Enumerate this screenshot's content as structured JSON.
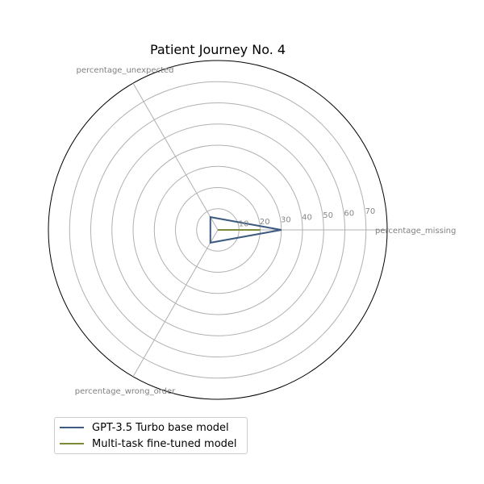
{
  "chart_data": {
    "type": "radar",
    "title": "Patient Journey No. 4",
    "axes": [
      "percentage_missing",
      "percentage_unexpected",
      "percentage_wrong_order"
    ],
    "r_ticks": [
      "10",
      "20",
      "30",
      "40",
      "50",
      "60",
      "70"
    ],
    "r_tick_values": [
      10,
      20,
      30,
      40,
      50,
      60,
      70
    ],
    "rlim": [
      0,
      80
    ],
    "grid": true,
    "legend_position": "lower-left",
    "series": [
      {
        "name": "GPT-3.5 Turbo base model",
        "values": [
          30,
          7,
          7
        ],
        "color": "#3d5a80"
      },
      {
        "name": "Multi-task fine-tuned model",
        "values": [
          20,
          0,
          0
        ],
        "color": "#7a8c3a"
      }
    ]
  }
}
